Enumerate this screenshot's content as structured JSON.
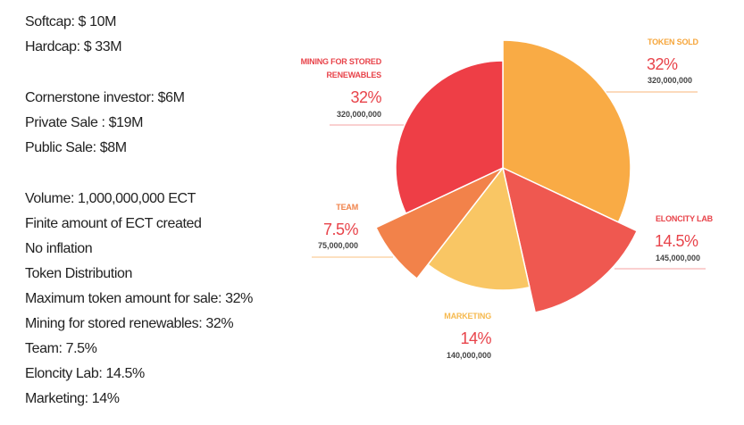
{
  "info": [
    "Softcap:  $ 10M",
    "Hardcap: $ 33M",
    "Cornerstone investor: $6M",
    "Private Sale : $19M",
    "Public Sale: $8M",
    "Volume:   1,000,000,000 ECT",
    "Finite amount of ECT created",
    "No inflation",
    "Token Distribution",
    "Maximum token amount for sale:  32%",
    "Mining for stored renewables: 32%",
    "Team: 7.5%",
    "Eloncity Lab: 14.5%",
    "Marketing:  14%"
  ],
  "chart_data": {
    "type": "pie",
    "title": "",
    "slices": [
      {
        "name": "TOKEN SOLD",
        "percent": 32,
        "percent_label": "32%",
        "amount": "320,000,000",
        "color": "#f9ab45",
        "label_color": "#f6a53a"
      },
      {
        "name": "ELONCITY LAB",
        "percent": 14.5,
        "percent_label": "14.5%",
        "amount": "145,000,000",
        "color": "#ef5850",
        "label_color": "#e8434a"
      },
      {
        "name": "MARKETING",
        "percent": 14,
        "percent_label": "14%",
        "amount": "140,000,000",
        "color": "#f9c664",
        "label_color": "#f6b94e"
      },
      {
        "name": "TEAM",
        "percent": 7.5,
        "percent_label": "7.5%",
        "amount": "75,000,000",
        "color": "#f2824a",
        "label_color": "#f0824a"
      },
      {
        "name": "MINING FOR STORED RENEWABLES",
        "name_lines": [
          "MINING FOR STORED",
          "RENEWABLES"
        ],
        "percent": 32,
        "percent_label": "32%",
        "amount": "320,000,000",
        "color": "#ee3e46",
        "label_color": "#e8434a"
      }
    ]
  }
}
